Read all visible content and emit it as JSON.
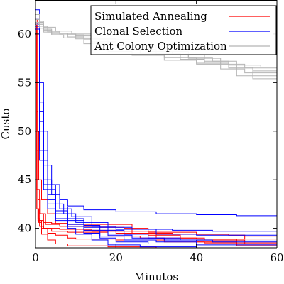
{
  "chart_data": {
    "type": "line",
    "title": "",
    "xlabel": "Minutos",
    "ylabel": "Custo",
    "xlim": [
      0,
      60
    ],
    "ylim": [
      38,
      63.5
    ],
    "xticks": [
      0,
      20,
      40,
      60
    ],
    "xtick_labels": [
      "0",
      "20",
      "40",
      "60"
    ],
    "yticks": [
      40,
      45,
      50,
      55,
      60
    ],
    "ytick_labels": [
      "40",
      "45",
      "50",
      "55",
      "60"
    ],
    "grid": false,
    "legend_position": "top-right",
    "series": [
      {
        "name": "Simulated Annealing",
        "color": "#ff0000",
        "runs": [
          [
            [
              0,
              61.0
            ],
            [
              0.3,
              52
            ],
            [
              0.6,
              44
            ],
            [
              1,
              41.5
            ],
            [
              2,
              40.6
            ],
            [
              4,
              40.5
            ],
            [
              8,
              40.4
            ],
            [
              20,
              40.4
            ],
            [
              24,
              39.5
            ],
            [
              34,
              39.4
            ],
            [
              40,
              39.4
            ],
            [
              48,
              39.3
            ],
            [
              52,
              38.9
            ],
            [
              60,
              38.9
            ]
          ],
          [
            [
              0,
              61.5
            ],
            [
              0.4,
              50
            ],
            [
              0.8,
              45
            ],
            [
              1.5,
              43
            ],
            [
              3,
              41.5
            ],
            [
              5,
              40.5
            ],
            [
              8,
              40.2
            ],
            [
              16,
              40.1
            ],
            [
              22,
              40.0
            ],
            [
              28,
              39.6
            ],
            [
              40,
              39.4
            ],
            [
              48,
              39.3
            ],
            [
              52,
              39.2
            ],
            [
              60,
              39.2
            ]
          ],
          [
            [
              0,
              60.5
            ],
            [
              0.3,
              48
            ],
            [
              0.6,
              43
            ],
            [
              1.2,
              41.5
            ],
            [
              2.5,
              40.4
            ],
            [
              6,
              40.2
            ],
            [
              12,
              39.8
            ],
            [
              20,
              39.5
            ],
            [
              28,
              39.3
            ],
            [
              36,
              39.0
            ],
            [
              42,
              38.8
            ],
            [
              52,
              38.4
            ],
            [
              60,
              38.4
            ]
          ],
          [
            [
              0,
              61.0
            ],
            [
              0.3,
              46
            ],
            [
              0.6,
              42
            ],
            [
              1,
              40.8
            ],
            [
              2,
              40.0
            ],
            [
              4,
              39.7
            ],
            [
              8,
              39.6
            ],
            [
              14,
              39.6
            ],
            [
              18,
              39.2
            ],
            [
              26,
              39.0
            ],
            [
              32,
              38.8
            ],
            [
              40,
              38.6
            ],
            [
              50,
              38.5
            ],
            [
              60,
              38.5
            ]
          ],
          [
            [
              0,
              60.0
            ],
            [
              0.3,
              45
            ],
            [
              0.6,
              41
            ],
            [
              1,
              40.2
            ],
            [
              2,
              40.0
            ],
            [
              6,
              39.9
            ],
            [
              10,
              39.9
            ],
            [
              14,
              39.7
            ],
            [
              22,
              39.7
            ],
            [
              30,
              39.0
            ],
            [
              40,
              38.9
            ],
            [
              50,
              38.3
            ],
            [
              60,
              38.3
            ]
          ],
          [
            [
              0,
              61.0
            ],
            [
              0.3,
              44
            ],
            [
              0.6,
              40.8
            ],
            [
              1.5,
              40.0
            ],
            [
              3,
              39.5
            ],
            [
              5,
              39.3
            ],
            [
              8,
              39.0
            ],
            [
              10,
              38.9
            ],
            [
              20,
              38.8
            ],
            [
              32,
              38.6
            ],
            [
              42,
              38.5
            ],
            [
              50,
              38.2
            ],
            [
              60,
              38.2
            ]
          ],
          [
            [
              0,
              60.5
            ],
            [
              0.3,
              42
            ],
            [
              0.8,
              40.6
            ],
            [
              1.5,
              39.4
            ],
            [
              3,
              38.8
            ],
            [
              5,
              38.4
            ],
            [
              8,
              38.2
            ],
            [
              18,
              38.1
            ],
            [
              30,
              38.0
            ],
            [
              45,
              38.0
            ],
            [
              60,
              38.0
            ]
          ]
        ]
      },
      {
        "name": "Clonal Selection",
        "color": "#0000ff",
        "runs": [
          [
            [
              0,
              62.5
            ],
            [
              1,
              55
            ],
            [
              2,
              50
            ],
            [
              3,
              46.5
            ],
            [
              4,
              44.5
            ],
            [
              6,
              43.0
            ],
            [
              8,
              42.3
            ],
            [
              12,
              41.9
            ],
            [
              20,
              41.7
            ],
            [
              30,
              41.5
            ],
            [
              40,
              41.4
            ],
            [
              50,
              41.3
            ],
            [
              60,
              41.2
            ]
          ],
          [
            [
              0,
              61.5
            ],
            [
              1,
              53
            ],
            [
              2,
              48
            ],
            [
              3,
              45
            ],
            [
              4,
              43.5
            ],
            [
              6,
              42.0
            ],
            [
              9,
              41.2
            ],
            [
              14,
              40.6
            ],
            [
              18,
              40.1
            ],
            [
              24,
              39.9
            ],
            [
              34,
              39.8
            ],
            [
              44,
              39.7
            ],
            [
              60,
              39.6
            ]
          ],
          [
            [
              0,
              62.0
            ],
            [
              1,
              52
            ],
            [
              2,
              47
            ],
            [
              3,
              44.5
            ],
            [
              5,
              42.5
            ],
            [
              7,
              41.5
            ],
            [
              10,
              40.6
            ],
            [
              14,
              40.2
            ],
            [
              20,
              39.9
            ],
            [
              30,
              39.4
            ],
            [
              40,
              39.3
            ],
            [
              60,
              39.2
            ]
          ],
          [
            [
              0,
              61.0
            ],
            [
              1,
              51
            ],
            [
              2,
              46.5
            ],
            [
              3,
              44
            ],
            [
              5,
              42.2
            ],
            [
              8,
              41.0
            ],
            [
              12,
              40.3
            ],
            [
              16,
              39.8
            ],
            [
              22,
              39.4
            ],
            [
              28,
              39.0
            ],
            [
              36,
              38.8
            ],
            [
              44,
              38.6
            ],
            [
              60,
              38.5
            ]
          ],
          [
            [
              0,
              61.5
            ],
            [
              1,
              50
            ],
            [
              2,
              46
            ],
            [
              3,
              43.5
            ],
            [
              5,
              41.8
            ],
            [
              8,
              40.8
            ],
            [
              12,
              40.1
            ],
            [
              18,
              39.3
            ],
            [
              24,
              39.0
            ],
            [
              32,
              38.8
            ],
            [
              40,
              38.7
            ],
            [
              60,
              38.6
            ]
          ],
          [
            [
              0,
              60.8
            ],
            [
              1,
              49
            ],
            [
              2,
              45
            ],
            [
              3,
              43
            ],
            [
              5,
              41.5
            ],
            [
              8,
              40.4
            ],
            [
              12,
              39.8
            ],
            [
              16,
              39.2
            ],
            [
              22,
              38.8
            ],
            [
              30,
              38.6
            ],
            [
              40,
              38.4
            ],
            [
              60,
              38.3
            ]
          ],
          [
            [
              0,
              61.0
            ],
            [
              1,
              48
            ],
            [
              2,
              44.5
            ],
            [
              3,
              42.5
            ],
            [
              5,
              41.0
            ],
            [
              8,
              40.2
            ],
            [
              12,
              39.5
            ],
            [
              16,
              39.0
            ],
            [
              20,
              38.6
            ],
            [
              28,
              38.4
            ],
            [
              40,
              38.3
            ],
            [
              60,
              38.2
            ]
          ],
          [
            [
              0,
              60.5
            ],
            [
              1,
              47
            ],
            [
              2,
              44
            ],
            [
              3,
              42
            ],
            [
              5,
              40.8
            ],
            [
              8,
              40.0
            ],
            [
              10,
              39.4
            ],
            [
              14,
              38.8
            ],
            [
              18,
              38.3
            ],
            [
              26,
              38.1
            ],
            [
              40,
              38.0
            ],
            [
              60,
              38.0
            ]
          ]
        ]
      },
      {
        "name": "Ant Colony Optimization",
        "color": "#b4b4b4",
        "runs": [
          [
            [
              0,
              61.5
            ],
            [
              1,
              61.0
            ],
            [
              2,
              60.5
            ],
            [
              4,
              60.0
            ],
            [
              8,
              59.7
            ],
            [
              12,
              59.4
            ],
            [
              18,
              58.8
            ],
            [
              24,
              58.4
            ],
            [
              30,
              57.9
            ],
            [
              38,
              57.5
            ],
            [
              46,
              56.9
            ],
            [
              52,
              56.5
            ],
            [
              60,
              56.2
            ]
          ],
          [
            [
              0,
              62.0
            ],
            [
              1,
              61.2
            ],
            [
              2,
              60.8
            ],
            [
              3,
              60.2
            ],
            [
              6,
              60.0
            ],
            [
              10,
              59.8
            ],
            [
              14,
              59.2
            ],
            [
              20,
              58.6
            ],
            [
              26,
              58.0
            ],
            [
              32,
              57.6
            ],
            [
              40,
              57.0
            ],
            [
              48,
              56.6
            ],
            [
              54,
              56.2
            ],
            [
              60,
              55.9
            ]
          ],
          [
            [
              0,
              61.0
            ],
            [
              1,
              60.6
            ],
            [
              2,
              60.2
            ],
            [
              4,
              59.9
            ],
            [
              7,
              59.6
            ],
            [
              12,
              59.0
            ],
            [
              18,
              58.2
            ],
            [
              24,
              57.8
            ],
            [
              32,
              57.3
            ],
            [
              40,
              56.9
            ],
            [
              46,
              56.4
            ],
            [
              52,
              56.0
            ],
            [
              60,
              55.6
            ]
          ],
          [
            [
              0,
              62.0
            ],
            [
              1,
              61.3
            ],
            [
              2,
              60.7
            ],
            [
              5,
              60.3
            ],
            [
              9,
              60.0
            ],
            [
              14,
              59.5
            ],
            [
              20,
              58.9
            ],
            [
              28,
              58.2
            ],
            [
              34,
              57.9
            ],
            [
              42,
              57.2
            ],
            [
              48,
              56.8
            ],
            [
              56,
              56.6
            ],
            [
              60,
              56.6
            ]
          ],
          [
            [
              0,
              61.5
            ],
            [
              1,
              61.0
            ],
            [
              2,
              60.4
            ],
            [
              4,
              60.1
            ],
            [
              8,
              59.9
            ],
            [
              12,
              59.6
            ],
            [
              16,
              59.4
            ],
            [
              24,
              58.8
            ],
            [
              30,
              58.2
            ],
            [
              38,
              57.6
            ],
            [
              44,
              57.2
            ],
            [
              50,
              55.7
            ],
            [
              60,
              55.0
            ]
          ],
          [
            [
              0,
              61.2
            ],
            [
              1,
              60.8
            ],
            [
              3,
              60.3
            ],
            [
              6,
              60.0
            ],
            [
              10,
              59.5
            ],
            [
              16,
              58.9
            ],
            [
              22,
              58.5
            ],
            [
              28,
              58.0
            ],
            [
              36,
              57.4
            ],
            [
              42,
              57.0
            ],
            [
              48,
              56.5
            ],
            [
              54,
              55.4
            ],
            [
              60,
              55.1
            ]
          ]
        ]
      }
    ]
  }
}
